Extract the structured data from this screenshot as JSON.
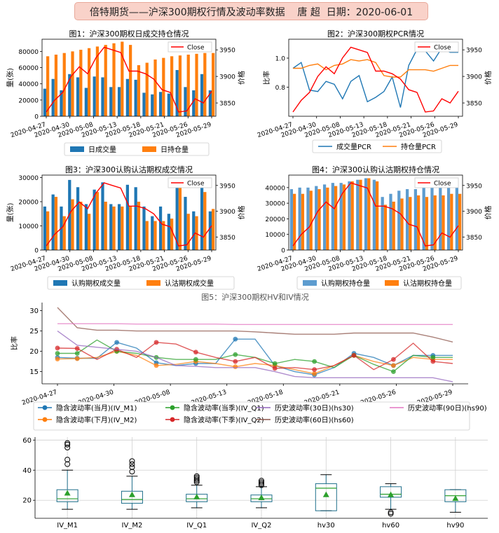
{
  "header": {
    "text": "倍特期货——沪深300期权行情及波动率数据    唐 超  日期：2020-06-01"
  },
  "colors": {
    "blue": "#1f77b4",
    "orange": "#ff7f0e",
    "green": "#2ca02c",
    "red": "#d62728",
    "purple": "#9467bd",
    "brown": "#8c564b",
    "pink": "#e377c2",
    "close": "#ff0000"
  },
  "dates_ticks": [
    "2020-04-27",
    "2020-04-30",
    "2020-05-08",
    "2020-05-13",
    "2020-05-18",
    "2020-05-21",
    "2020-05-26",
    "2020-05-29"
  ],
  "chart_data": [
    {
      "type": "bar",
      "title": "图1：沪深300期权日成交持仓情况",
      "ylabel": "量(张)",
      "y2label": "价格",
      "ylim": [
        0,
        95000
      ],
      "y2lim": [
        3825,
        3970
      ],
      "yticks": [
        "0",
        "20000",
        "40000",
        "60000",
        "80000"
      ],
      "y2ticks": [
        "3850",
        "3900",
        "3950"
      ],
      "series": [
        {
          "name": "日成交量",
          "values": [
            34000,
            46000,
            32000,
            52000,
            48000,
            35000,
            49000,
            48000,
            36000,
            36000,
            46000,
            45000,
            29000,
            27000,
            30000,
            28000,
            57000,
            36000,
            32000,
            52000,
            32000
          ]
        },
        {
          "name": "日持仓量",
          "values": [
            74000,
            76000,
            78000,
            80000,
            82000,
            84000,
            86000,
            88000,
            90000,
            92000,
            88000,
            63000,
            66000,
            70000,
            72000,
            74000,
            75000,
            76000,
            77000,
            78000,
            78000
          ]
        }
      ],
      "close_name": "Close",
      "close": [
        3833,
        3855,
        3870,
        3900,
        3918,
        3905,
        3935,
        3955,
        3950,
        3945,
        3910,
        3910,
        3905,
        3895,
        3875,
        3870,
        3833,
        3835,
        3858,
        3850,
        3872
      ],
      "legend": [
        "日成交量",
        "日持仓量"
      ]
    },
    {
      "type": "line",
      "title": "图2：沪深300期权PCR情况",
      "ylabel": "比率",
      "y2label": "价格",
      "ylim": [
        0.6,
        1.13
      ],
      "y2lim": [
        3825,
        3970
      ],
      "yticks": [
        "0.8",
        "1.0"
      ],
      "y2ticks": [
        "3850",
        "3900",
        "3950"
      ],
      "series": [
        {
          "name": "成交量PCR",
          "values": [
            0.93,
            0.97,
            0.78,
            0.77,
            0.84,
            0.82,
            0.72,
            0.84,
            0.88,
            0.7,
            0.73,
            0.77,
            0.87,
            0.66,
            0.95,
            1.06,
            1.05,
            0.98,
            1.07,
            1.04,
            1.04
          ]
        },
        {
          "name": "持仓量PCR",
          "values": [
            0.93,
            0.93,
            0.95,
            0.96,
            0.92,
            0.95,
            0.96,
            0.99,
            0.98,
            0.99,
            0.97,
            0.88,
            0.87,
            0.87,
            0.92,
            0.92,
            0.92,
            0.91,
            0.93,
            0.95,
            0.95
          ]
        }
      ],
      "close_name": "Close",
      "close": [
        3833,
        3855,
        3870,
        3900,
        3918,
        3905,
        3935,
        3955,
        3950,
        3945,
        3910,
        3910,
        3905,
        3895,
        3875,
        3870,
        3833,
        3835,
        3858,
        3850,
        3872
      ],
      "legend": [
        "成交量PCR",
        "持仓量PCR"
      ]
    },
    {
      "type": "bar",
      "title": "图3：沪深300认购认沽期权成交情况",
      "ylabel": "量(张)",
      "y2label": "价格",
      "ylim": [
        0,
        31000
      ],
      "y2lim": [
        3825,
        3970
      ],
      "yticks": [
        "0",
        "10000",
        "20000",
        "30000"
      ],
      "y2ticks": [
        "3850",
        "3900",
        "3950"
      ],
      "series": [
        {
          "name": "认购期权成交量",
          "values": [
            18000,
            23000,
            18000,
            29000,
            26000,
            19000,
            25000,
            28000,
            19000,
            19000,
            27000,
            26000,
            18000,
            14000,
            18000,
            15000,
            28000,
            22000,
            16000,
            29000,
            16000
          ]
        },
        {
          "name": "认沽期权成交量",
          "values": [
            16000,
            22000,
            14000,
            21000,
            20000,
            15000,
            24000,
            20000,
            18000,
            18000,
            18000,
            20000,
            12000,
            12000,
            12000,
            13000,
            29000,
            15000,
            14000,
            24000,
            17000
          ]
        }
      ],
      "close_name": "Close",
      "close": [
        3833,
        3855,
        3870,
        3900,
        3918,
        3905,
        3935,
        3955,
        3950,
        3945,
        3910,
        3910,
        3905,
        3895,
        3875,
        3870,
        3833,
        3835,
        3858,
        3850,
        3872
      ],
      "legend": [
        "认购期权成交量",
        "认沽期权成交量"
      ]
    },
    {
      "type": "bar",
      "title": "图4：沪深300认购认沽期权持仓情况",
      "ylabel": "",
      "y2label": "价格",
      "ylim": [
        0,
        48000
      ],
      "y2lim": [
        3825,
        3970
      ],
      "yticks": [
        "0",
        "10000",
        "20000",
        "30000",
        "40000"
      ],
      "y2ticks": [
        "3850",
        "3900",
        "3950"
      ],
      "series": [
        {
          "name": "认购期权持仓量",
          "values": [
            39000,
            40000,
            40000,
            41000,
            42000,
            43000,
            43000,
            44000,
            45000,
            46000,
            45000,
            34000,
            36000,
            38000,
            39000,
            39000,
            41000,
            41000,
            42000,
            42000,
            42000
          ]
        },
        {
          "name": "认沽期权持仓量",
          "values": [
            36000,
            36000,
            38000,
            39000,
            40000,
            41000,
            42000,
            44000,
            45000,
            46000,
            44000,
            29000,
            31000,
            33000,
            34000,
            35000,
            34000,
            35000,
            35000,
            36000,
            36000
          ]
        }
      ],
      "close_name": "Close",
      "close": [
        3833,
        3855,
        3870,
        3900,
        3918,
        3905,
        3935,
        3955,
        3950,
        3945,
        3910,
        3910,
        3905,
        3895,
        3875,
        3870,
        3833,
        3835,
        3858,
        3850,
        3872
      ],
      "legend": [
        "认购期权持仓量",
        "认沽期权持仓量"
      ]
    },
    {
      "type": "line",
      "title": "图5：沪深300期权HV和IV情况",
      "ylabel": "比率",
      "ylim": [
        12,
        32
      ],
      "yticks": [
        "15",
        "20",
        "25",
        "30"
      ],
      "series": [
        {
          "name": "隐含波动率(当月)(IV_M1)",
          "values": [
            18.5,
            18.3,
            18.3,
            22.2,
            20.8,
            17.2,
            16.5,
            17.0,
            17.0,
            23.0,
            23.0,
            16.5,
            15.0,
            14.2,
            16.0,
            19.5,
            18.5,
            16.5,
            19.0,
            19.0,
            19.0
          ]
        },
        {
          "name": "隐含波动率(下月)(IV_M2)",
          "values": [
            18.1,
            18.2,
            18.5,
            20.0,
            19.0,
            16.5,
            16.8,
            17.5,
            17.0,
            16.2,
            17.0,
            16.5,
            15.5,
            14.5,
            16.5,
            19.0,
            17.5,
            16.5,
            18.5,
            18.0,
            18.0
          ]
        },
        {
          "name": "隐含波动率(当季)(IV_Q1)",
          "values": [
            19.5,
            19.5,
            22.8,
            20.0,
            19.5,
            18.5,
            18.0,
            18.0,
            18.0,
            19.2,
            18.5,
            17.0,
            18.0,
            17.5,
            16.0,
            19.0,
            16.8,
            15.0,
            19.0,
            18.5,
            18.5
          ]
        },
        {
          "name": "隐含波动率(下季)(IV_Q2)",
          "values": [
            20.8,
            20.7,
            18.0,
            20.5,
            18.5,
            22.2,
            21.8,
            19.8,
            18.5,
            17.5,
            18.5,
            15.8,
            16.0,
            15.5,
            16.5,
            19.0,
            15.5,
            18.0,
            22.0,
            17.5,
            17.0
          ]
        },
        {
          "name": "历史波动率(30日)(hs30)",
          "values": [
            25.0,
            21.5,
            21.0,
            20.5,
            20.0,
            18.5,
            16.5,
            16.3,
            16.0,
            16.0,
            16.0,
            15.0,
            13.8,
            13.5,
            13.5,
            13.5,
            13.5,
            13.5,
            13.5,
            13.5,
            12.5
          ]
        },
        {
          "name": "历史波动率(60日)(hs60)",
          "values": [
            30.8,
            25.8,
            25.2,
            25.2,
            25.0,
            25.0,
            25.0,
            25.0,
            25.0,
            25.0,
            24.8,
            24.5,
            24.2,
            24.2,
            24.2,
            24.5,
            24.5,
            24.5,
            24.5,
            23.5,
            22.3
          ]
        },
        {
          "name": "历史波动率(90日)(hs90)",
          "values": [
            26.8,
            26.8,
            26.8,
            26.8,
            26.7,
            26.7,
            26.7,
            26.7,
            26.7,
            26.6,
            26.6,
            26.6,
            26.6,
            26.6,
            26.6,
            26.6,
            26.6,
            26.6,
            26.6,
            26.6,
            26.6
          ]
        }
      ]
    },
    {
      "type": "box",
      "ylim": [
        8,
        62
      ],
      "yticks": [
        "20",
        "40",
        "60"
      ],
      "categories": [
        "IV_M1",
        "IV_M2",
        "IV_Q1",
        "IV_Q2",
        "hv30",
        "hv60",
        "hv90"
      ],
      "boxes": [
        {
          "whislo": 14,
          "q1": 19,
          "med": 21,
          "q3": 27,
          "whishi": 40,
          "mean": 24.5,
          "fliers": [
            44,
            47,
            55,
            57,
            58
          ]
        },
        {
          "whislo": 14,
          "q1": 18,
          "med": 20.5,
          "q3": 26,
          "whishi": 36,
          "mean": 23.5,
          "fliers": [
            39,
            42,
            44,
            46
          ]
        },
        {
          "whislo": 15,
          "q1": 19,
          "med": 21,
          "q3": 24,
          "whishi": 30,
          "mean": 22,
          "fliers": [
            32,
            33,
            34,
            35,
            36
          ]
        },
        {
          "whislo": 15,
          "q1": 19,
          "med": 21,
          "q3": 23.5,
          "whishi": 29,
          "mean": 21.5,
          "fliers": [
            30,
            31,
            32,
            33
          ]
        },
        {
          "whislo": 13,
          "q1": 13,
          "med": 28,
          "q3": 31,
          "whishi": 37,
          "mean": 23.5,
          "fliers": []
        },
        {
          "whislo": 14,
          "q1": 22,
          "med": 24,
          "q3": 29,
          "whishi": 31,
          "mean": 23.5,
          "fliers": [
            11,
            12
          ]
        },
        {
          "whislo": 12,
          "q1": 19,
          "med": 23,
          "q3": 27,
          "whishi": 27,
          "mean": 21,
          "fliers": []
        }
      ]
    }
  ]
}
